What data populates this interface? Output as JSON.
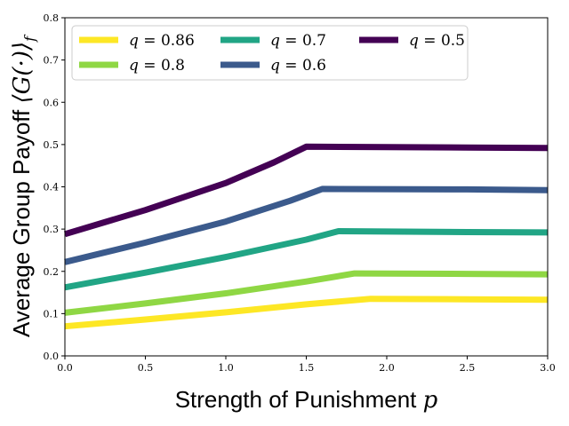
{
  "chart_data": {
    "type": "line",
    "xlabel": "Strength of Punishment",
    "xlabel_symbol": "p",
    "ylabel": "Average Group Payoff",
    "ylabel_symbol": "⟨G(·)⟩",
    "ylabel_subscript": "f",
    "xlim": [
      0,
      3.0
    ],
    "ylim": [
      0,
      0.8
    ],
    "xticks": [
      "0.0",
      "0.5",
      "1.0",
      "1.5",
      "2.0",
      "2.5",
      "3.0"
    ],
    "yticks": [
      "0.0",
      "0.1",
      "0.2",
      "0.3",
      "0.4",
      "0.5",
      "0.6",
      "0.7",
      "0.8"
    ],
    "grid": false,
    "legend_position": "top",
    "series": [
      {
        "name": "q = 0.86",
        "name_var": "q",
        "name_value": "0.86",
        "color": "#fde725",
        "x": [
          0.0,
          0.5,
          1.0,
          1.5,
          1.9,
          2.5,
          3.0
        ],
        "y": [
          0.07,
          0.086,
          0.103,
          0.122,
          0.135,
          0.134,
          0.133
        ]
      },
      {
        "name": "q = 0.8",
        "name_var": "q",
        "name_value": "0.8",
        "color": "#8fd744",
        "x": [
          0.0,
          0.5,
          1.0,
          1.5,
          1.8,
          2.5,
          3.0
        ],
        "y": [
          0.102,
          0.124,
          0.148,
          0.176,
          0.195,
          0.194,
          0.193
        ]
      },
      {
        "name": "q = 0.7",
        "name_var": "q",
        "name_value": "0.7",
        "color": "#21a585",
        "x": [
          0.0,
          0.5,
          1.0,
          1.5,
          1.7,
          2.5,
          3.0
        ],
        "y": [
          0.162,
          0.197,
          0.234,
          0.275,
          0.295,
          0.293,
          0.292
        ]
      },
      {
        "name": "q = 0.6",
        "name_var": "q",
        "name_value": "0.6",
        "color": "#3b5a8c",
        "x": [
          0.0,
          0.5,
          1.0,
          1.4,
          1.6,
          2.5,
          3.0
        ],
        "y": [
          0.222,
          0.268,
          0.318,
          0.367,
          0.395,
          0.394,
          0.392
        ]
      },
      {
        "name": "q = 0.5",
        "name_var": "q",
        "name_value": "0.5",
        "color": "#440154",
        "x": [
          0.0,
          0.5,
          1.0,
          1.3,
          1.5,
          2.0,
          2.5,
          3.0
        ],
        "y": [
          0.288,
          0.345,
          0.409,
          0.458,
          0.495,
          0.494,
          0.493,
          0.492
        ]
      }
    ]
  }
}
